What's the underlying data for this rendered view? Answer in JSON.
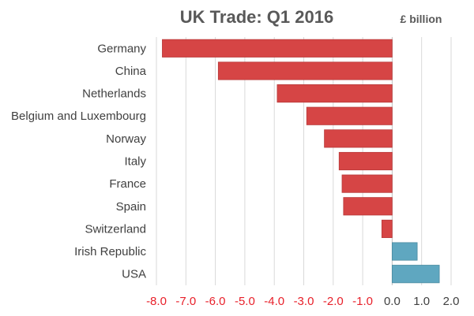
{
  "chart_data": {
    "type": "bar",
    "orientation": "horizontal",
    "title": "UK Trade: Q1 2016",
    "unit_label": "£ billion",
    "categories": [
      "Germany",
      "China",
      "Netherlands",
      "Belgium and Luxembourg",
      "Norway",
      "Italy",
      "France",
      "Spain",
      "Switzerland",
      "Irish Republic",
      "USA"
    ],
    "values": [
      -7.8,
      -5.9,
      -3.9,
      -2.9,
      -2.3,
      -1.8,
      -1.7,
      -1.65,
      -0.35,
      0.85,
      1.6
    ],
    "xlim": [
      -8.0,
      2.0
    ],
    "x_ticks": [
      "-8.0",
      "-7.0",
      "-6.0",
      "-5.0",
      "-4.0",
      "-3.0",
      "-2.0",
      "-1.0",
      "0.0",
      "1.0",
      "2.0"
    ],
    "grid": true,
    "colors": {
      "negative": "#d64545",
      "positive": "#5fa7c0",
      "negative_tick": "#e8202a",
      "positive_tick": "#404040"
    }
  }
}
